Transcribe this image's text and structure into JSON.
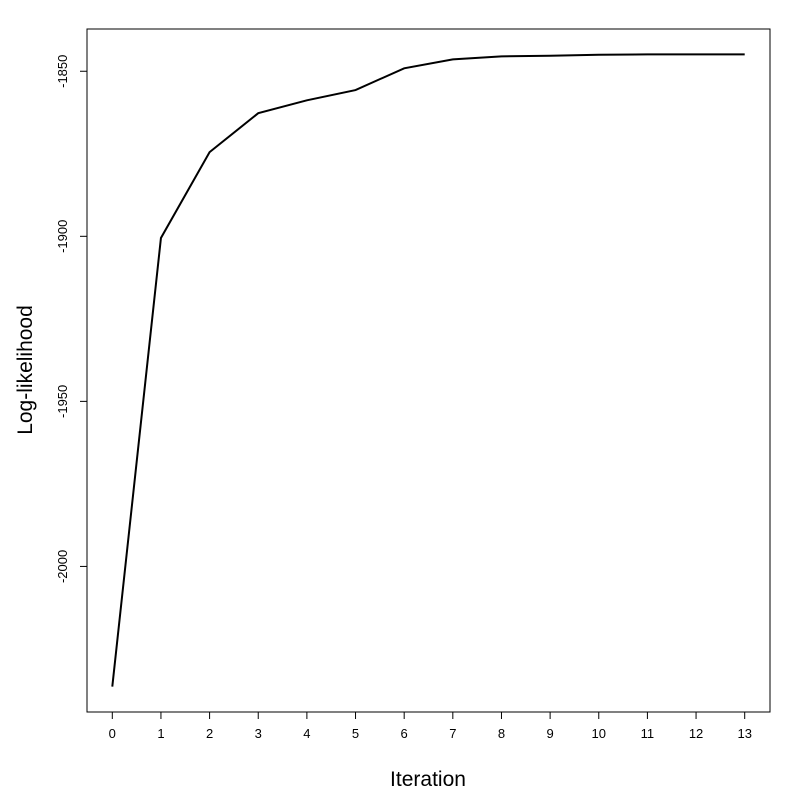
{
  "chart_data": {
    "type": "line",
    "x_label": "Iteration",
    "y_label": "Log-likelihood",
    "x": [
      0,
      1,
      2,
      3,
      4,
      5,
      6,
      7,
      8,
      9,
      10,
      11,
      12,
      13
    ],
    "series": [
      {
        "color": "#000000",
        "values": [
          -2036.4,
          -1900.5,
          -1874.5,
          -1862.7,
          -1858.8,
          -1855.7,
          -1849.1,
          -1846.4,
          -1845.5,
          -1845.3,
          -1845.0,
          -1844.9,
          -1844.9,
          -1844.9
        ]
      }
    ],
    "xlim": [
      -0.52,
      13.52
    ],
    "xticks": [
      0,
      1,
      2,
      3,
      4,
      5,
      6,
      7,
      8,
      9,
      10,
      11,
      12,
      13
    ],
    "ylim": [
      -2044.1,
      -1837.2
    ],
    "yticks": [
      -2000,
      -1950,
      -1900,
      -1850
    ]
  }
}
